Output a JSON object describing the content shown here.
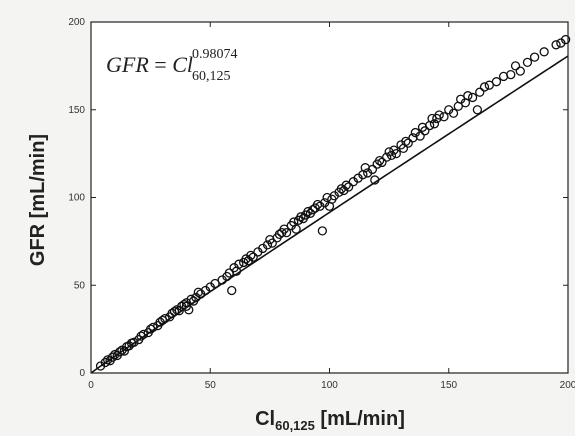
{
  "chart_data": {
    "type": "scatter",
    "title": "",
    "xlabel": {
      "main": "Cl",
      "subscript": "60,125",
      "unit": " [mL/min]"
    },
    "ylabel": "GFR [mL/min]",
    "xlim": [
      0,
      200
    ],
    "ylim": [
      0,
      200
    ],
    "xticks": [
      0,
      50,
      100,
      150,
      200
    ],
    "yticks": [
      0,
      50,
      100,
      150,
      200
    ],
    "grid": false,
    "annotation": {
      "lhs": "GFR",
      "equals": " = ",
      "base": "Cl",
      "exponent": "0.98074",
      "subscript": "60,125"
    },
    "fit": {
      "name": "",
      "exponent": 0.98074,
      "x_range": [
        0,
        200
      ]
    },
    "series": [
      {
        "name": "",
        "marker": "open-circle",
        "points": [
          [
            4,
            4
          ],
          [
            6,
            6
          ],
          [
            7,
            7.5
          ],
          [
            8,
            7
          ],
          [
            9,
            9
          ],
          [
            10,
            10.5
          ],
          [
            11,
            10
          ],
          [
            12,
            12
          ],
          [
            13,
            13
          ],
          [
            14,
            12.5
          ],
          [
            15,
            15
          ],
          [
            16,
            15.5
          ],
          [
            17,
            17
          ],
          [
            18,
            17.5
          ],
          [
            20,
            19
          ],
          [
            21,
            21
          ],
          [
            22,
            22
          ],
          [
            24,
            23
          ],
          [
            25,
            25
          ],
          [
            26,
            26
          ],
          [
            28,
            27
          ],
          [
            29,
            29
          ],
          [
            30,
            30
          ],
          [
            31,
            31
          ],
          [
            33,
            32
          ],
          [
            34,
            34
          ],
          [
            35,
            35
          ],
          [
            36,
            36
          ],
          [
            37,
            35.5
          ],
          [
            38,
            38
          ],
          [
            39,
            39
          ],
          [
            40,
            38
          ],
          [
            40,
            40
          ],
          [
            41,
            36
          ],
          [
            42,
            42
          ],
          [
            43,
            41
          ],
          [
            44,
            43
          ],
          [
            45,
            46
          ],
          [
            46,
            45
          ],
          [
            48,
            47
          ],
          [
            50,
            49
          ],
          [
            52,
            51
          ],
          [
            55,
            53
          ],
          [
            57,
            55
          ],
          [
            58,
            57
          ],
          [
            59,
            47
          ],
          [
            60,
            60
          ],
          [
            61,
            58
          ],
          [
            62,
            62
          ],
          [
            64,
            63
          ],
          [
            65,
            65
          ],
          [
            66,
            64
          ],
          [
            67,
            67
          ],
          [
            68,
            66
          ],
          [
            70,
            69
          ],
          [
            72,
            71
          ],
          [
            74,
            73
          ],
          [
            75,
            76
          ],
          [
            76,
            74
          ],
          [
            78,
            77
          ],
          [
            79,
            79
          ],
          [
            80,
            80
          ],
          [
            81,
            82
          ],
          [
            82,
            80
          ],
          [
            84,
            84
          ],
          [
            85,
            86
          ],
          [
            86,
            82
          ],
          [
            87,
            87
          ],
          [
            88,
            89
          ],
          [
            89,
            88
          ],
          [
            90,
            90
          ],
          [
            91,
            92
          ],
          [
            92,
            91
          ],
          [
            93,
            93
          ],
          [
            94,
            94
          ],
          [
            95,
            96
          ],
          [
            96,
            95
          ],
          [
            97,
            81
          ],
          [
            98,
            97
          ],
          [
            99,
            100
          ],
          [
            100,
            95
          ],
          [
            101,
            99
          ],
          [
            102,
            101
          ],
          [
            104,
            103
          ],
          [
            105,
            105
          ],
          [
            106,
            104
          ],
          [
            107,
            107
          ],
          [
            108,
            106
          ],
          [
            110,
            109
          ],
          [
            112,
            111
          ],
          [
            114,
            113
          ],
          [
            115,
            117
          ],
          [
            116,
            114
          ],
          [
            118,
            116
          ],
          [
            119,
            110
          ],
          [
            120,
            119
          ],
          [
            121,
            121
          ],
          [
            122,
            120
          ],
          [
            124,
            123
          ],
          [
            125,
            126
          ],
          [
            126,
            124
          ],
          [
            127,
            127
          ],
          [
            128,
            125
          ],
          [
            130,
            130
          ],
          [
            131,
            128
          ],
          [
            132,
            132
          ],
          [
            133,
            131
          ],
          [
            135,
            134
          ],
          [
            136,
            137
          ],
          [
            138,
            135
          ],
          [
            139,
            140
          ],
          [
            140,
            138
          ],
          [
            142,
            141
          ],
          [
            143,
            145
          ],
          [
            144,
            142
          ],
          [
            145,
            145
          ],
          [
            146,
            147
          ],
          [
            148,
            146
          ],
          [
            150,
            150
          ],
          [
            152,
            148
          ],
          [
            154,
            152
          ],
          [
            155,
            156
          ],
          [
            157,
            154
          ],
          [
            158,
            158
          ],
          [
            160,
            157
          ],
          [
            162,
            150
          ],
          [
            163,
            160
          ],
          [
            165,
            163
          ],
          [
            167,
            164
          ],
          [
            170,
            166
          ],
          [
            173,
            169
          ],
          [
            176,
            170
          ],
          [
            178,
            175
          ],
          [
            180,
            172
          ],
          [
            183,
            177
          ],
          [
            186,
            180
          ],
          [
            190,
            183
          ],
          [
            195,
            187
          ],
          [
            197,
            188
          ],
          [
            199,
            190
          ]
        ]
      }
    ]
  }
}
